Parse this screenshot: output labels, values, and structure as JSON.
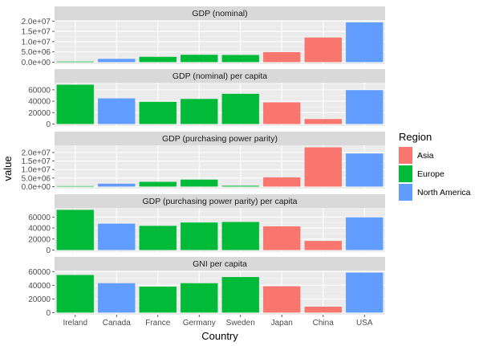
{
  "chart_data": {
    "type": "bar",
    "layout": "faceted",
    "xlabel": "Country",
    "ylabel": "value",
    "categories": [
      "Ireland",
      "Canada",
      "France",
      "Germany",
      "Sweden",
      "Japan",
      "China",
      "USA"
    ],
    "region_of_category": [
      "Europe",
      "North America",
      "Europe",
      "Europe",
      "Europe",
      "Asia",
      "Asia",
      "North America"
    ],
    "legend": {
      "title": "Region",
      "placement": "right",
      "entries": [
        {
          "name": "Asia",
          "color": "#F8766D"
        },
        {
          "name": "Europe",
          "color": "#00BA38"
        },
        {
          "name": "North America",
          "color": "#619CFF"
        }
      ]
    },
    "grid": true,
    "facets": [
      {
        "title": "GDP (nominal)",
        "values": [
          300000,
          1600000,
          2600000,
          3600000,
          3500000,
          4900000,
          12000000,
          19400000
        ],
        "ylim": [
          -1000000,
          20500000
        ],
        "ticks": [
          0,
          5000000,
          10000000,
          15000000,
          20000000
        ],
        "tick_labels": [
          "0.0e+00",
          "5.0e+06",
          "1.0e+07",
          "1.5e+07",
          "2.0e+07"
        ]
      },
      {
        "title": "GDP (nominal) per capita",
        "values": [
          69000,
          45000,
          39000,
          44000,
          53000,
          38000,
          8800,
          59500
        ],
        "ylim": [
          -3500,
          72500
        ],
        "ticks": [
          0,
          20000,
          40000,
          60000
        ],
        "tick_labels": [
          "0",
          "20000",
          "40000",
          "60000"
        ]
      },
      {
        "title": "GDP (purchasing power parity)",
        "values": [
          300000,
          1700000,
          2800000,
          4100000,
          500000,
          5400000,
          23000000,
          19400000
        ],
        "ylim": [
          -1200000,
          24200000
        ],
        "ticks": [
          0,
          5000000,
          10000000,
          15000000,
          20000000
        ],
        "tick_labels": [
          "0.0e+00",
          "5.0e+06",
          "1.0e+07",
          "1.5e+07",
          "2.0e+07"
        ]
      },
      {
        "title": "GDP (purchasing power parity) per capita",
        "values": [
          73000,
          48000,
          44000,
          50000,
          51000,
          43000,
          16600,
          59500
        ],
        "ylim": [
          -3600,
          76500
        ],
        "ticks": [
          0,
          20000,
          40000,
          60000
        ],
        "tick_labels": [
          "0",
          "20000",
          "40000",
          "60000"
        ]
      },
      {
        "title": "GNI per capita",
        "values": [
          55000,
          43000,
          38000,
          43000,
          52000,
          38500,
          8700,
          58500
        ],
        "ylim": [
          -3000,
          61500
        ],
        "ticks": [
          0,
          20000,
          40000,
          60000
        ],
        "tick_labels": [
          "0",
          "20000",
          "40000",
          "60000"
        ]
      }
    ]
  }
}
